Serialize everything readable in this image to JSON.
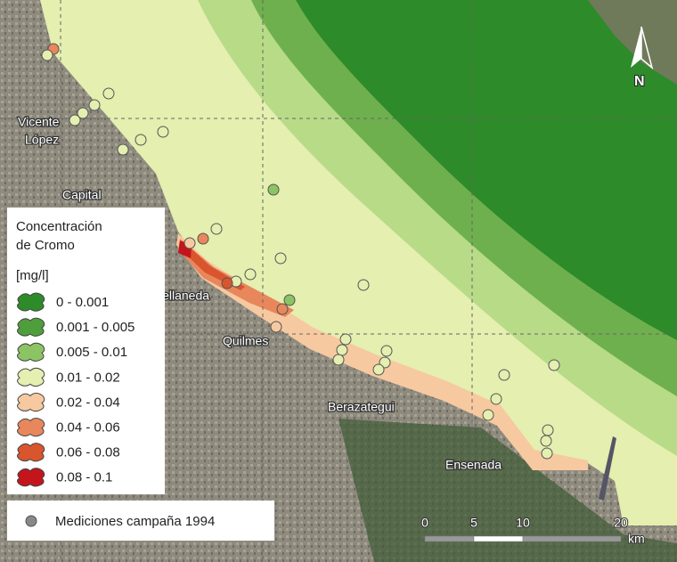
{
  "places": [
    "Vicente",
    "López",
    "Capital",
    "Avellaneda",
    "Quilmes",
    "Berazategui",
    "Ensenada"
  ],
  "north": "N",
  "legend": {
    "title": [
      "Concentración",
      "de Cromo"
    ],
    "unit": "[mg/l]",
    "items": [
      {
        "label": "0 - 0.001",
        "color": "#2e8b2a"
      },
      {
        "label": "0.001 - 0.005",
        "color": "#4f9e3c"
      },
      {
        "label": "0.005 - 0.01",
        "color": "#8cc464"
      },
      {
        "label": "0.01 - 0.02",
        "color": "#e4efb0"
      },
      {
        "label": "0.02 - 0.04",
        "color": "#f7c9a0"
      },
      {
        "label": "0.04 - 0.06",
        "color": "#e8875c"
      },
      {
        "label": "0.06 - 0.08",
        "color": "#d9552e"
      },
      {
        "label": "0.08 - 0.1",
        "color": "#c4151c"
      }
    ]
  },
  "points_label": "Mediciones campaña 1994",
  "scale": {
    "ticks": [
      0,
      5,
      10,
      20
    ],
    "unit": "km"
  }
}
